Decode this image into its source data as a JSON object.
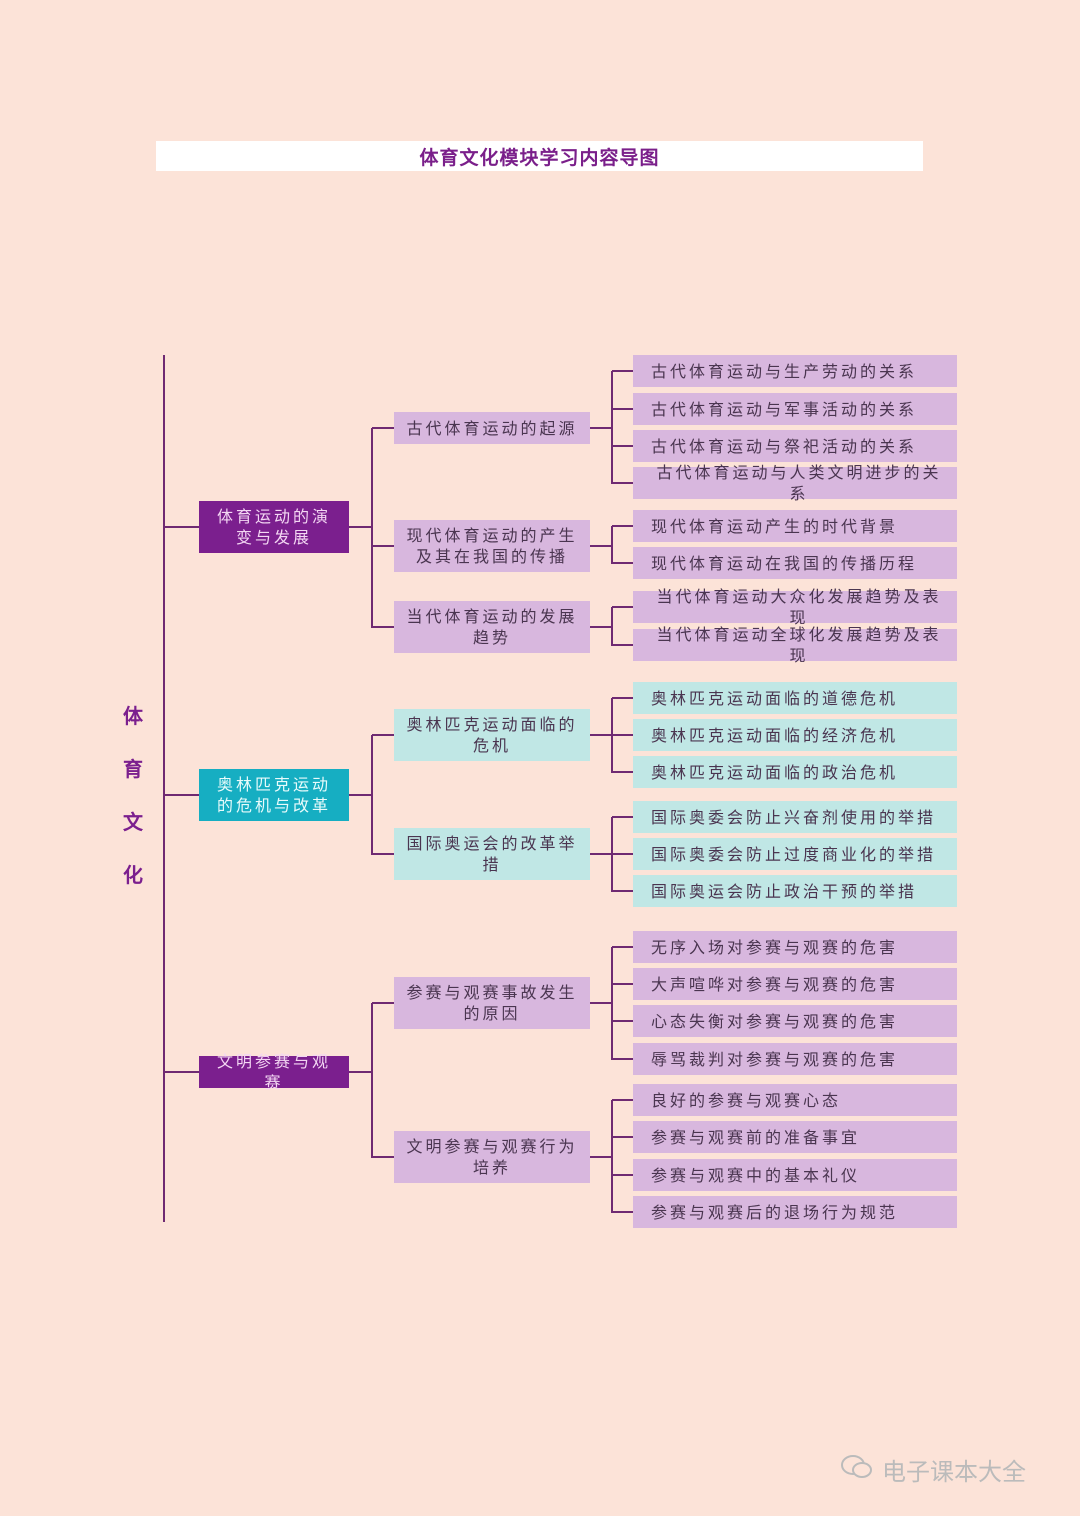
{
  "title": "体育文化模块学习内容导图",
  "root": "体育文化",
  "colors": {
    "background": "#fce3d8",
    "dark_purple": "#7b1f8e",
    "light_purple": "#d8b7de",
    "teal": "#16aec2",
    "light_teal": "#c0e7e5",
    "line": "#6f2a72"
  },
  "branches": [
    {
      "label": "体育运动的演变与发展",
      "theme": "purple",
      "children": [
        {
          "label": "古代体育运动的起源",
          "children": [
            "古代体育运动与生产劳动的关系",
            "古代体育运动与军事活动的关系",
            "古代体育运动与祭祀活动的关系",
            "古代体育运动与人类文明进步的关系"
          ]
        },
        {
          "label": "现代体育运动的产生及其在我国的传播",
          "children": [
            "现代体育运动产生的时代背景",
            "现代体育运动在我国的传播历程"
          ]
        },
        {
          "label": "当代体育运动的发展趋势",
          "children": [
            "当代体育运动大众化发展趋势及表现",
            "当代体育运动全球化发展趋势及表现"
          ]
        }
      ]
    },
    {
      "label": "奥林匹克运动的危机与改革",
      "theme": "teal",
      "children": [
        {
          "label": "奥林匹克运动面临的危机",
          "children": [
            "奥林匹克运动面临的道德危机",
            "奥林匹克运动面临的经济危机",
            "奥林匹克运动面临的政治危机"
          ]
        },
        {
          "label": "国际奥运会的改革举措",
          "children": [
            "国际奥委会防止兴奋剂使用的举措",
            "国际奥委会防止过度商业化的举措",
            "国际奥运会防止政治干预的举措"
          ]
        }
      ]
    },
    {
      "label": "文明参赛与观赛",
      "theme": "purple",
      "children": [
        {
          "label": "参赛与观赛事故发生的原因",
          "children": [
            "无序入场对参赛与观赛的危害",
            "大声喧哗对参赛与观赛的危害",
            "心态失衡对参赛与观赛的危害",
            "辱骂裁判对参赛与观赛的危害"
          ]
        },
        {
          "label": "文明参赛与观赛行为培养",
          "children": [
            "良好的参赛与观赛心态",
            "参赛与观赛前的准备事宜",
            "参赛与观赛中的基本礼仪",
            "参赛与观赛后的退场行为规范"
          ]
        }
      ]
    }
  ],
  "watermark": {
    "icon": "wechat-icon",
    "text": "电子课本大全"
  }
}
